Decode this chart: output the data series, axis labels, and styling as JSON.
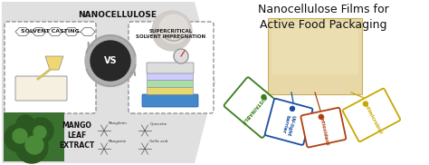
{
  "title_left": "NANOCELLULOSE",
  "label_solvent": "SOLVENT CASTING",
  "label_supercritical": "SUPERCRITICAL\nSOLVENT IMPREGNATION",
  "label_mango": "MANGO\nLEAF\nEXTRACT",
  "label_vs": "VS",
  "title_right": "Nanocellulose Films for\nActive Food Packaging",
  "tag_labels": [
    "SUSTAINABLE",
    "UV-light\nbarrier",
    "Antioxidant",
    "Antimicrobial"
  ],
  "tag_colors": [
    "#3a7d1e",
    "#1a4fa0",
    "#b04010",
    "#c8a800"
  ],
  "film_color": "#e8d8a8",
  "film_edge": "#c8b060",
  "chevron_color": "#e0e0e0",
  "dashed_color": "#888888",
  "vs_outer": "#b0b0b0",
  "vs_inner": "#282828",
  "bg_white": "#ffffff"
}
